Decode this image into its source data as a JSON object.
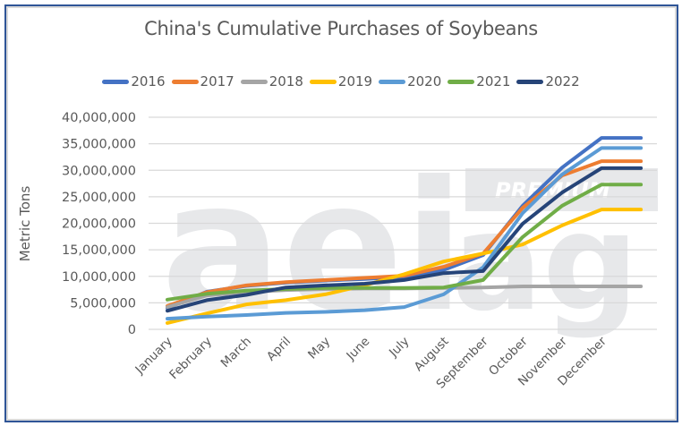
{
  "chart_data": {
    "type": "line",
    "title": "China's Cumulative Purchases of Soybeans",
    "xlabel": "",
    "ylabel": "Metric Tons",
    "ylim": [
      0,
      40000000
    ],
    "y_ticks": [
      "0",
      "5,000,000",
      "10,000,000",
      "15,000,000",
      "20,000,000",
      "25,000,000",
      "30,000,000",
      "35,000,000",
      "40,000,000"
    ],
    "grid": true,
    "legend_position": "top",
    "categories": [
      "January",
      "February",
      "March",
      "April",
      "May",
      "June",
      "July",
      "August",
      "September",
      "October",
      "November",
      "December"
    ],
    "series": [
      {
        "name": "2016",
        "color": "#4472c4",
        "values": [
          4000000,
          7100000,
          8200000,
          8800000,
          9200000,
          9500000,
          9900000,
          11200000,
          14000000,
          23300000,
          30500000,
          36100000
        ]
      },
      {
        "name": "2017",
        "color": "#ed7d31",
        "values": [
          4400000,
          7000000,
          8300000,
          8900000,
          9300000,
          9700000,
          10100000,
          11800000,
          14300000,
          22900000,
          29000000,
          31700000
        ]
      },
      {
        "name": "2018",
        "color": "#a5a5a5",
        "values": [
          4200000,
          6400000,
          7000000,
          7400000,
          7600000,
          7700000,
          7700000,
          7800000,
          7900000,
          8100000,
          8100000,
          8100000
        ]
      },
      {
        "name": "2019",
        "color": "#ffc000",
        "values": [
          1200000,
          3000000,
          4700000,
          5500000,
          6600000,
          8300000,
          10400000,
          12800000,
          14300000,
          16000000,
          19600000,
          22600000
        ]
      },
      {
        "name": "2020",
        "color": "#5b9bd5",
        "values": [
          2000000,
          2400000,
          2700000,
          3100000,
          3300000,
          3600000,
          4200000,
          6600000,
          11700000,
          21900000,
          29200000,
          34200000
        ]
      },
      {
        "name": "2021",
        "color": "#70ad47",
        "values": [
          5600000,
          6700000,
          7300000,
          7600000,
          7800000,
          7800000,
          7800000,
          7900000,
          9300000,
          17400000,
          23300000,
          27300000
        ]
      },
      {
        "name": "2022",
        "color": "#264478",
        "values": [
          3500000,
          5500000,
          6500000,
          7900000,
          8300000,
          8600000,
          9300000,
          10600000,
          11000000,
          19900000,
          25800000,
          30400000
        ]
      }
    ]
  },
  "watermark": {
    "main": "aei",
    "secondary": "ag",
    "badge": "PREMIUM"
  }
}
